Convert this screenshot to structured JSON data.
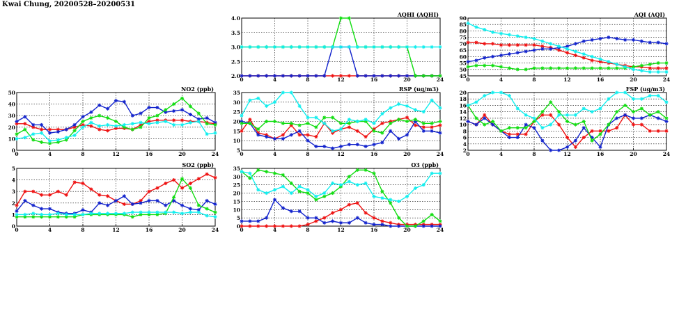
{
  "title": "Kwai Chung, 20200528–20200531",
  "colors": {
    "red": "#ee1111",
    "blue": "#1122cc",
    "green": "#11dd11",
    "cyan": "#11eeee"
  },
  "chart_data": [
    {
      "id": "no2",
      "type": "line",
      "title": "NO2 (ppb)",
      "xlim": [
        0,
        24
      ],
      "ylim": [
        0,
        50
      ],
      "xticks": [
        "0",
        "4",
        "8",
        "12",
        "16",
        "20",
        "24"
      ],
      "yticks": [
        "0",
        "10",
        "20",
        "30",
        "40",
        "50"
      ],
      "grid": true,
      "series": [
        {
          "color": "red",
          "values": [
            23,
            23,
            20,
            18,
            18,
            18,
            18,
            20,
            22,
            21,
            18,
            17,
            19,
            19,
            18,
            22,
            25,
            26,
            26,
            26,
            26,
            25,
            25,
            24,
            23
          ]
        },
        {
          "color": "blue",
          "values": [
            25,
            29,
            22,
            22,
            15,
            16,
            18,
            22,
            29,
            33,
            39,
            36,
            43,
            42,
            30,
            32,
            37,
            37,
            33,
            34,
            35,
            31,
            27,
            28,
            24
          ]
        },
        {
          "color": "green",
          "values": [
            14,
            18,
            9,
            7,
            6,
            7,
            9,
            17,
            25,
            28,
            30,
            28,
            25,
            20,
            18,
            20,
            28,
            30,
            35,
            40,
            45,
            38,
            32,
            23,
            22
          ]
        },
        {
          "color": "cyan",
          "values": [
            10,
            11,
            14,
            15,
            8,
            9,
            11,
            13,
            20,
            24,
            21,
            22,
            21,
            22,
            23,
            24,
            23,
            24,
            25,
            22,
            22,
            24,
            25,
            14,
            15
          ]
        }
      ]
    },
    {
      "id": "so2",
      "type": "line",
      "title": "SO2 (ppb)",
      "xlim": [
        0,
        24
      ],
      "ylim": [
        0,
        5
      ],
      "xticks": [
        "0",
        "4",
        "8",
        "12",
        "16",
        "20",
        "24"
      ],
      "yticks": [
        "0",
        "1",
        "2",
        "3",
        "4",
        "5"
      ],
      "grid": true,
      "series": [
        {
          "color": "red",
          "values": [
            1.8,
            3.0,
            3.0,
            2.7,
            2.7,
            3.0,
            2.7,
            3.8,
            3.7,
            3.2,
            2.7,
            2.6,
            2.2,
            1.9,
            1.9,
            2.2,
            3.0,
            3.3,
            3.7,
            4.0,
            3.3,
            3.7,
            4.1,
            4.5,
            4.2
          ]
        },
        {
          "color": "blue",
          "values": [
            1.3,
            2.2,
            1.8,
            1.5,
            1.5,
            1.2,
            1.1,
            1.1,
            1.4,
            1.2,
            2.0,
            1.8,
            2.2,
            2.6,
            1.9,
            2.0,
            2.2,
            2.2,
            1.8,
            2.2,
            1.8,
            1.5,
            1.4,
            2.2,
            1.9
          ]
        },
        {
          "color": "green",
          "values": [
            0.8,
            0.8,
            0.8,
            0.8,
            0.8,
            0.8,
            0.8,
            0.8,
            1.0,
            1.0,
            1.0,
            1.0,
            1.0,
            1.0,
            0.8,
            1.0,
            1.0,
            1.0,
            1.1,
            2.5,
            4.1,
            3.3,
            1.8,
            1.5,
            1.2
          ]
        },
        {
          "color": "cyan",
          "values": [
            1.0,
            1.0,
            1.1,
            1.0,
            1.0,
            1.1,
            1.0,
            1.0,
            1.0,
            1.1,
            1.1,
            1.1,
            1.1,
            1.1,
            1.2,
            1.2,
            1.2,
            1.2,
            1.2,
            1.2,
            1.1,
            1.2,
            1.2,
            0.9,
            0.8
          ]
        }
      ]
    },
    {
      "id": "aqhi",
      "type": "line",
      "title": "AQHI (AQHI)",
      "xlim": [
        0,
        24
      ],
      "ylim": [
        2,
        4
      ],
      "xticks": [
        "0",
        "4",
        "8",
        "12",
        "16",
        "20",
        "24"
      ],
      "yticks": [
        "2.0",
        "2.5",
        "3.0",
        "3.5",
        "4.0"
      ],
      "grid": true,
      "series": [
        {
          "color": "red",
          "values": [
            2,
            2,
            2,
            2,
            2,
            2,
            2,
            2,
            2,
            2,
            2,
            2,
            2,
            2,
            2,
            2,
            2,
            2,
            2,
            2,
            2,
            2,
            2,
            2,
            2
          ]
        },
        {
          "color": "blue",
          "values": [
            2,
            2,
            2,
            2,
            2,
            2,
            2,
            2,
            2,
            2,
            2,
            3,
            3,
            3,
            2,
            2,
            2,
            2,
            2,
            2,
            2,
            2,
            2,
            2,
            2
          ]
        },
        {
          "color": "green",
          "values": [
            3,
            3,
            3,
            3,
            3,
            3,
            3,
            3,
            3,
            3,
            3,
            3,
            4,
            4,
            3,
            3,
            3,
            3,
            3,
            3,
            3,
            2,
            2,
            2,
            2
          ]
        },
        {
          "color": "cyan",
          "values": [
            3,
            3,
            3,
            3,
            3,
            3,
            3,
            3,
            3,
            3,
            3,
            3,
            3,
            3,
            3,
            3,
            3,
            3,
            3,
            3,
            3,
            3,
            3,
            3,
            3
          ]
        }
      ]
    },
    {
      "id": "rsp",
      "type": "line",
      "title": "RSP (ug/m3)",
      "xlim": [
        0,
        24
      ],
      "ylim": [
        5,
        35
      ],
      "xticks": [
        "0",
        "4",
        "8",
        "12",
        "16",
        "20",
        "24"
      ],
      "yticks": [
        "5",
        "10",
        "15",
        "20",
        "25",
        "30",
        "35"
      ],
      "grid": true,
      "series": [
        {
          "color": "red",
          "values": [
            15,
            21,
            14,
            13,
            11,
            13,
            18,
            13,
            13,
            12,
            19,
            14,
            16,
            17,
            15,
            12,
            16,
            19,
            20,
            21,
            22,
            18,
            17,
            17,
            18
          ]
        },
        {
          "color": "blue",
          "values": [
            20,
            19,
            13,
            12,
            11,
            11,
            13,
            15,
            10,
            7,
            7,
            6,
            7,
            8,
            8,
            7,
            8,
            9,
            15,
            11,
            13,
            20,
            15,
            15,
            14
          ]
        },
        {
          "color": "green",
          "values": [
            19,
            19,
            16,
            20,
            20,
            19,
            19,
            18,
            19,
            17,
            22,
            22,
            19,
            19,
            20,
            20,
            15,
            14,
            19,
            21,
            20,
            21,
            19,
            19,
            20
          ]
        },
        {
          "color": "cyan",
          "values": [
            23,
            31,
            32,
            28,
            30,
            35,
            35,
            28,
            22,
            22,
            19,
            15,
            16,
            21,
            20,
            21,
            19,
            24,
            27,
            29,
            28,
            26,
            25,
            31,
            27
          ]
        }
      ]
    },
    {
      "id": "o3",
      "type": "line",
      "title": "O3 (ppb)",
      "xlim": [
        0,
        24
      ],
      "ylim": [
        0,
        35
      ],
      "xticks": [
        "0",
        "4",
        "8",
        "12",
        "16",
        "20",
        "24"
      ],
      "yticks": [
        "0",
        "5",
        "10",
        "15",
        "20",
        "25",
        "30",
        "35"
      ],
      "grid": true,
      "series": [
        {
          "color": "red",
          "values": [
            0,
            0,
            0,
            0,
            0,
            0,
            0,
            0,
            1,
            3,
            5,
            8,
            10,
            13,
            14,
            8,
            5,
            3,
            2,
            1,
            1,
            1,
            1,
            1,
            1
          ]
        },
        {
          "color": "blue",
          "values": [
            3,
            3,
            3,
            5,
            16,
            11,
            9,
            9,
            5,
            5,
            2,
            3,
            2,
            2,
            5,
            2,
            1,
            1,
            0,
            0,
            0,
            0,
            0,
            0,
            0
          ]
        },
        {
          "color": "green",
          "values": [
            33,
            29,
            34,
            33,
            32,
            31,
            26,
            21,
            20,
            16,
            18,
            20,
            24,
            30,
            34,
            34,
            32,
            21,
            14,
            5,
            0,
            0,
            3,
            7,
            3
          ]
        },
        {
          "color": "cyan",
          "values": [
            33,
            32,
            22,
            20,
            22,
            24,
            20,
            24,
            22,
            18,
            20,
            26,
            25,
            27,
            25,
            26,
            18,
            17,
            16,
            15,
            18,
            23,
            25,
            32,
            32
          ]
        }
      ]
    },
    {
      "id": "aqi",
      "type": "line",
      "title": "AQI (AQI)",
      "xlim": [
        0,
        24
      ],
      "ylim": [
        45,
        90
      ],
      "xticks": [
        "0",
        "4",
        "8",
        "12",
        "16",
        "20",
        "24"
      ],
      "yticks": [
        "45",
        "50",
        "55",
        "60",
        "65",
        "70",
        "75",
        "80",
        "85",
        "90"
      ],
      "grid": true,
      "series": [
        {
          "color": "red",
          "values": [
            71,
            71,
            70,
            70,
            69,
            69,
            69,
            69,
            69,
            68,
            67,
            65,
            63,
            61,
            59,
            57,
            56,
            55,
            54,
            53,
            52,
            52,
            51,
            51,
            51
          ]
        },
        {
          "color": "blue",
          "values": [
            56,
            57,
            59,
            60,
            61,
            62,
            63,
            64,
            65,
            66,
            66,
            67,
            68,
            70,
            72,
            73,
            74,
            75,
            74,
            73,
            73,
            72,
            71,
            71,
            70
          ]
        },
        {
          "color": "green",
          "values": [
            52,
            53,
            53,
            53,
            52,
            51,
            50,
            50,
            51,
            51,
            51,
            51,
            51,
            51,
            51,
            51,
            51,
            51,
            51,
            51,
            52,
            53,
            54,
            55,
            55
          ]
        },
        {
          "color": "cyan",
          "values": [
            86,
            83,
            81,
            79,
            78,
            77,
            76,
            75,
            74,
            72,
            70,
            68,
            66,
            64,
            62,
            60,
            58,
            56,
            54,
            52,
            50,
            49,
            48,
            48,
            48
          ]
        }
      ]
    },
    {
      "id": "fsp",
      "type": "line",
      "title": "FSP (ug/m3)",
      "xlim": [
        0,
        24
      ],
      "ylim": [
        2,
        20
      ],
      "xticks": [
        "0",
        "4",
        "8",
        "12",
        "16",
        "20",
        "24"
      ],
      "yticks": [
        "2",
        "4",
        "6",
        "8",
        "10",
        "12",
        "14",
        "16",
        "18",
        "20"
      ],
      "grid": true,
      "series": [
        {
          "color": "red",
          "values": [
            11,
            10,
            13,
            10,
            8,
            7,
            7,
            7,
            11,
            13,
            13,
            10,
            6,
            3,
            6,
            8,
            8,
            8,
            9,
            13,
            10,
            10,
            8,
            8,
            8
          ]
        },
        {
          "color": "blue",
          "values": [
            11,
            10,
            12,
            10,
            8,
            6,
            6,
            10,
            9,
            5,
            2,
            2,
            3,
            5,
            9,
            6,
            3,
            10,
            12,
            13,
            12,
            12,
            13,
            12,
            11
          ]
        },
        {
          "color": "green",
          "values": [
            16,
            12,
            10,
            11,
            8,
            9,
            9,
            9,
            11,
            14,
            17,
            14,
            11,
            10,
            11,
            5,
            7,
            10,
            14,
            16,
            14,
            15,
            13,
            14,
            12
          ]
        },
        {
          "color": "cyan",
          "values": [
            16,
            17,
            19,
            20,
            20,
            19,
            15,
            13,
            12,
            9,
            10,
            13,
            13,
            13,
            15,
            14,
            15,
            18,
            20,
            20,
            18,
            18,
            19,
            19,
            17
          ]
        }
      ]
    }
  ]
}
